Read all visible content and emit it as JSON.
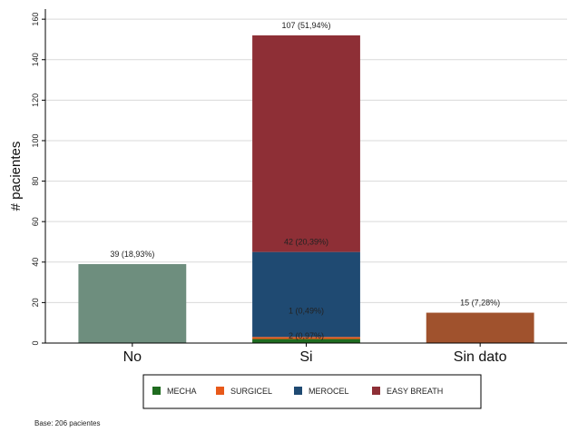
{
  "chart_data": {
    "type": "bar",
    "stacked": true,
    "categories": [
      "No",
      "Si",
      "Sin dato"
    ],
    "ylabel": "# pacientes",
    "xlabel": "",
    "ylim": [
      0,
      165
    ],
    "yticks": [
      0,
      20,
      40,
      60,
      80,
      100,
      120,
      140,
      160
    ],
    "grid": true,
    "legend_position": "bottom",
    "bars": [
      {
        "category": "No",
        "segments": [
          {
            "series": null,
            "value": 39,
            "color": "#6e8e7e",
            "label": "39 (18,93%)"
          }
        ]
      },
      {
        "category": "Si",
        "segments": [
          {
            "series": "MECHA",
            "value": 2,
            "color": "#1f6b1f",
            "label": "2 (0,97%)"
          },
          {
            "series": "SURGICEL",
            "value": 1,
            "color": "#e8591a",
            "label": "1 (0,49%)"
          },
          {
            "series": "MEROCEL",
            "value": 42,
            "color": "#1f4a72",
            "label": "42 (20,39%)"
          },
          {
            "series": "EASY BREATH",
            "value": 107,
            "color": "#8e2f36",
            "label": "107 (51,94%)"
          }
        ]
      },
      {
        "category": "Sin dato",
        "segments": [
          {
            "series": null,
            "value": 15,
            "color": "#a0522d",
            "label": "15 (7,28%)"
          }
        ]
      }
    ],
    "legend": [
      {
        "name": "MECHA",
        "color": "#1f6b1f"
      },
      {
        "name": "SURGICEL",
        "color": "#e8591a"
      },
      {
        "name": "MEROCEL",
        "color": "#1f4a72"
      },
      {
        "name": "EASY BREATH",
        "color": "#8e2f36"
      }
    ]
  },
  "footnote": "Base: 206 pacientes"
}
